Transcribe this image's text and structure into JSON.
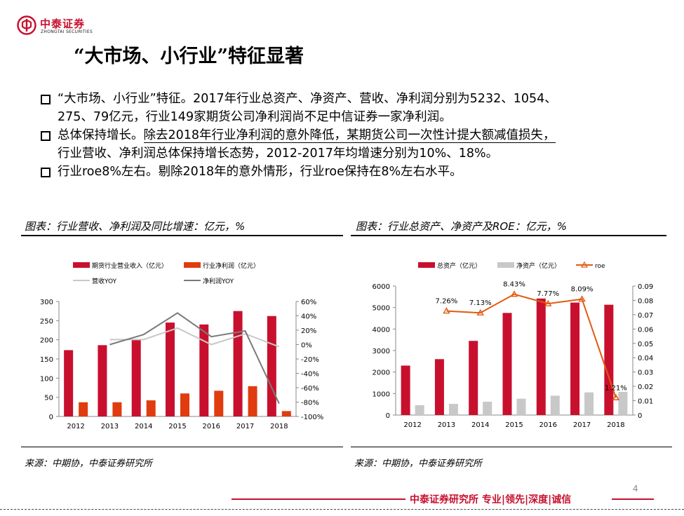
{
  "brand": {
    "name_cn": "中泰证券",
    "name_en": "ZHONGTAI SECURITIES",
    "logo_icon": "zhongtai-logo-icon",
    "accent": "#c8102e"
  },
  "title": "“大市场、小行业”特征显著",
  "bullets": [
    {
      "lead": "“大市场、小行业”特征。",
      "text_l1": "2017年行业总资产、净资产、营收、净利润分别为5232、1054、",
      "text_l2": "275、79亿元，行业149家期货公司净利润尚不足中信证券一家净利润。"
    },
    {
      "lead": "总体保持增长。",
      "underlined": "除去2018年行业净利润的意外降低，某期货公司一次性计提大额减值损失，",
      "text_l2": "行业营收、净利润总体保持增长态势，2012-2017年均增速分别为10%、18%。"
    },
    {
      "lead": "行业roe8%左右。",
      "text_l1": "剔除2018年的意外情形，行业roe保持在8%左右水平。"
    }
  ],
  "chart_left_title": "图表：行业营收、净利润及同比增速：亿元，%",
  "chart_right_title": "图表：行业总资产、净资产及ROE：亿元，%",
  "source_left": "来源：中期协，中泰证券研究所",
  "source_right": "来源：中期协，中泰证券研究所",
  "page_number": "4",
  "footer": "中泰证券研究所 专业|领先|深度|诚信",
  "chart_data": [
    {
      "type": "bar",
      "title": "图表：行业营收、净利润及同比增速：亿元，%",
      "categories": [
        "2012",
        "2013",
        "2014",
        "2015",
        "2016",
        "2017",
        "2018"
      ],
      "series": [
        {
          "name": "期货行业营业收入（亿元）",
          "kind": "bar",
          "axis": "left",
          "color": "#c8102e",
          "values": [
            173,
            186,
            200,
            245,
            240,
            275,
            262
          ]
        },
        {
          "name": "行业净利润（亿元）",
          "kind": "bar",
          "axis": "left",
          "color": "#e03c10",
          "values": [
            37,
            37,
            42,
            60,
            67,
            79,
            14
          ]
        },
        {
          "name": "营收YOY",
          "kind": "line",
          "axis": "right",
          "color": "#c8c8c8",
          "values": [
            null,
            7,
            7,
            23,
            0,
            15,
            -3
          ]
        },
        {
          "name": "净利润YOY",
          "kind": "line",
          "axis": "right",
          "color": "#7a7a7a",
          "values": [
            null,
            0,
            14,
            44,
            11,
            19,
            -82
          ]
        }
      ],
      "y_left": {
        "min": 0,
        "max": 300,
        "ticks": [
          "0",
          "50",
          "100",
          "150",
          "200",
          "250",
          "300"
        ]
      },
      "y_right": {
        "min": -100,
        "max": 60,
        "ticks": [
          "-100%",
          "-80%",
          "-60%",
          "-40%",
          "-20%",
          "0%",
          "20%",
          "40%",
          "60%"
        ]
      }
    },
    {
      "type": "bar",
      "title": "图表：行业总资产、净资产及ROE：亿元，%",
      "categories": [
        "2012",
        "2013",
        "2014",
        "2015",
        "2016",
        "2017",
        "2018"
      ],
      "series": [
        {
          "name": "总资产（亿元）",
          "kind": "bar",
          "axis": "left",
          "color": "#c8102e",
          "values": [
            2300,
            2600,
            3450,
            4750,
            5420,
            5232,
            5130
          ]
        },
        {
          "name": "净资产（亿元）",
          "kind": "bar",
          "axis": "left",
          "color": "#c8c8c8",
          "values": [
            460,
            520,
            620,
            760,
            900,
            1054,
            1080
          ]
        },
        {
          "name": "roe",
          "kind": "line",
          "axis": "right",
          "color": "#e05a10",
          "values": [
            null,
            0.0726,
            0.0713,
            0.0843,
            0.0777,
            0.0809,
            0.0121
          ],
          "labels": [
            "",
            "7.26%",
            "7.13%",
            "8.43%",
            "7.77%",
            "8.09%",
            "1.21%"
          ]
        }
      ],
      "y_left": {
        "min": 0,
        "max": 6000,
        "ticks": [
          "0",
          "1000",
          "2000",
          "3000",
          "4000",
          "5000",
          "6000"
        ]
      },
      "y_right": {
        "min": 0,
        "max": 0.09,
        "ticks": [
          "0",
          "0.01",
          "0.02",
          "0.03",
          "0.04",
          "0.05",
          "0.06",
          "0.07",
          "0.08",
          "0.09"
        ]
      }
    }
  ]
}
